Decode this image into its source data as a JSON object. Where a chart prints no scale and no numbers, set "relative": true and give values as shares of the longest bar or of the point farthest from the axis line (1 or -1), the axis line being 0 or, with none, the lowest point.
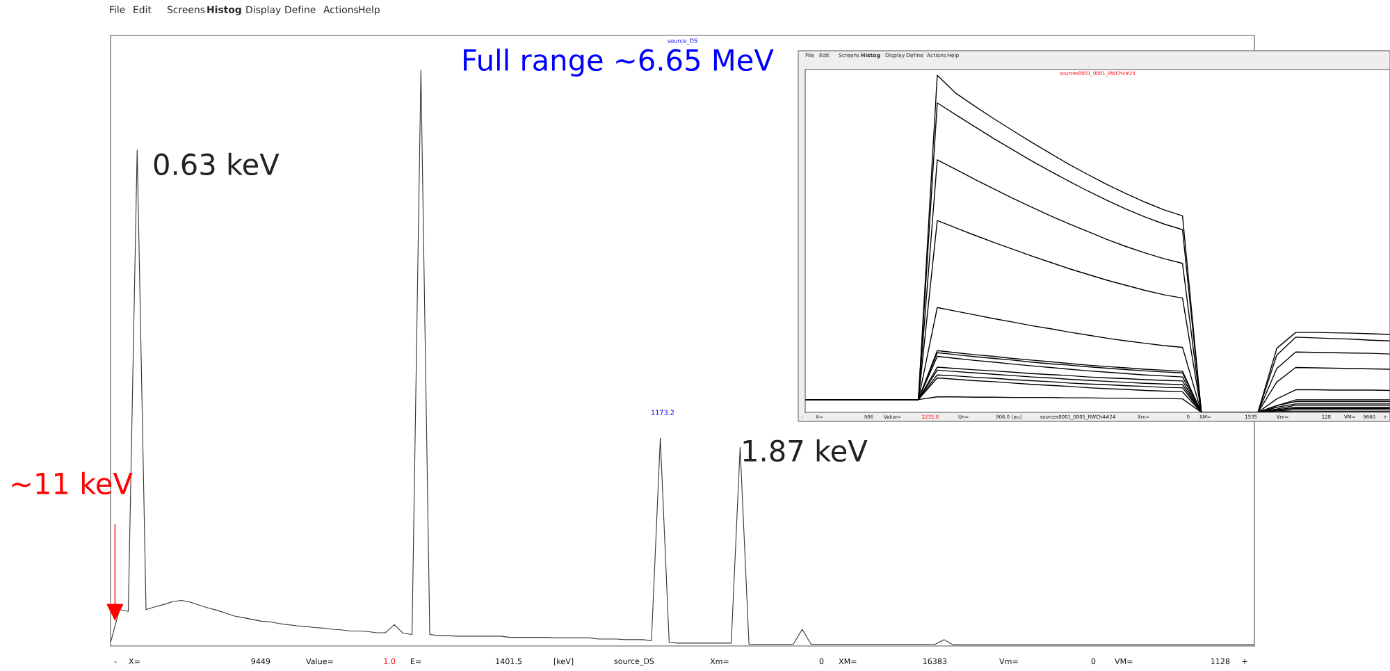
{
  "chart_data": [
    {
      "type": "line",
      "title": "source_DS",
      "relative": true,
      "categories": [
        null,
        null,
        null,
        null,
        null,
        null,
        null,
        null,
        null,
        null,
        null,
        null,
        null,
        null,
        null,
        null,
        null,
        null,
        null,
        null,
        null,
        null,
        null,
        null,
        null,
        null,
        null,
        null,
        null,
        null,
        null,
        null,
        null,
        null,
        null,
        null,
        null,
        null,
        null,
        null,
        null,
        null,
        null,
        null,
        null,
        null,
        null,
        null,
        null,
        null,
        null,
        null,
        null,
        null,
        null,
        null,
        null,
        null,
        null,
        null,
        null,
        null,
        null,
        null,
        null,
        null,
        null,
        null,
        null,
        null,
        null,
        null,
        null,
        null,
        null,
        null,
        null,
        null,
        null,
        null,
        null,
        null,
        null,
        null,
        null,
        null,
        null,
        null,
        null,
        null,
        null,
        null,
        null,
        null,
        null,
        null,
        null,
        null,
        null,
        null,
        null,
        null,
        null,
        null,
        null,
        null,
        null,
        null,
        null,
        null,
        null,
        null,
        null,
        null,
        null,
        null,
        null,
        null,
        null,
        null,
        null,
        null,
        null,
        null,
        null,
        null,
        null,
        null,
        null,
        null
      ],
      "series": [
        {
          "color": "#333333",
          "values": [
            0.006,
            0.063,
            0.06,
            0.861,
            0.063,
            0.068,
            0.072,
            0.077,
            0.079,
            0.076,
            0.071,
            0.066,
            0.062,
            0.057,
            0.052,
            0.049,
            0.046,
            0.043,
            0.042,
            0.039,
            0.037,
            0.035,
            0.034,
            0.032,
            0.031,
            0.029,
            0.028,
            0.026,
            0.026,
            0.025,
            0.023,
            0.023,
            0.037,
            0.022,
            0.02,
            1.0,
            0.02,
            0.018,
            0.018,
            0.017,
            0.017,
            0.017,
            0.017,
            0.017,
            0.017,
            0.015,
            0.015,
            0.015,
            0.015,
            0.015,
            0.014,
            0.014,
            0.014,
            0.014,
            0.014,
            0.012,
            0.012,
            0.012,
            0.011,
            0.011,
            0.011,
            0.009,
            0.361,
            0.006,
            0.005,
            0.005,
            0.005,
            0.005,
            0.005,
            0.005,
            0.005,
            0.345,
            0.003,
            0.003,
            0.003,
            0.003,
            0.003,
            0.003,
            0.029,
            0.003,
            0.003,
            0.003,
            0.003,
            0.003,
            0.003,
            0.003,
            0.003,
            0.003,
            0.003,
            0.003,
            0.003,
            0.003,
            0.003,
            0.003,
            0.011,
            0.002,
            0.002,
            0.002,
            0.002,
            0.002,
            0.002,
            0.002,
            0.002,
            0.002,
            0.002,
            0.002,
            0.002,
            0.002,
            0.002,
            0.002,
            0.002,
            0.002,
            0.002,
            0.002,
            0.002,
            0.002,
            0.002,
            0.002,
            0.002,
            0.002,
            0.002,
            0.002,
            0.002,
            0.002,
            0.002,
            0.002,
            0.002,
            0.002,
            0.002,
            0.002
          ]
        }
      ],
      "annotations": [
        "0.63 keV",
        "Full range ~6.65 MeV",
        "1173.2",
        "1.87 keV",
        "~11 keV",
        "File",
        "Edit",
        "Screens",
        "Histog",
        "Display",
        "Define",
        "Actions",
        "Help",
        "-",
        "X=",
        "9449",
        "Value=",
        "1.0",
        "E=",
        "1401.5",
        "[keV]",
        "source_DS",
        "Xm=",
        "0",
        "XM=",
        "16383",
        "Vm=",
        "0",
        "VM=",
        "1128",
        "+"
      ]
    },
    {
      "type": "line",
      "title": "sources0001_0001_RWCh4#24",
      "relative": true,
      "categories": [
        null,
        null,
        null,
        null,
        null,
        null,
        null,
        null,
        null,
        null,
        null,
        null,
        null,
        null,
        null,
        null,
        null,
        null,
        null,
        null,
        null,
        null,
        null,
        null,
        null,
        null,
        null,
        null,
        null,
        null,
        null,
        null
      ],
      "series": [
        {
          "color": "#000000",
          "values": [
            0.038,
            0.038,
            0.038,
            0.038,
            0.038,
            0.038,
            0.038,
            1.0,
            0.946,
            0.908,
            0.871,
            0.836,
            0.801,
            0.768,
            0.735,
            0.705,
            0.676,
            0.649,
            0.624,
            0.601,
            0.583,
            0,
            0,
            0,
            0,
            0.19,
            0.237,
            0.237,
            0.236,
            0.235,
            0.233,
            0.231
          ]
        },
        {
          "color": "#000000",
          "values": [
            0.038,
            0.038,
            0.038,
            0.038,
            0.038,
            0.038,
            0.038,
            0.918,
            0.882,
            0.847,
            0.812,
            0.779,
            0.746,
            0.715,
            0.685,
            0.656,
            0.629,
            0.603,
            0.58,
            0.559,
            0.542,
            0,
            0,
            0,
            0,
            0.17,
            0.223,
            0.221,
            0.219,
            0.217,
            0.214,
            0.212
          ]
        },
        {
          "color": "#000000",
          "values": [
            0.038,
            0.038,
            0.038,
            0.038,
            0.038,
            0.038,
            0.038,
            0.749,
            0.72,
            0.691,
            0.663,
            0.635,
            0.609,
            0.583,
            0.559,
            0.536,
            0.513,
            0.492,
            0.473,
            0.456,
            0.442,
            0,
            0,
            0,
            0,
            0.13,
            0.179,
            0.178,
            0.177,
            0.176,
            0.175,
            0.173
          ]
        },
        {
          "color": "#000000",
          "values": [
            0.038,
            0.038,
            0.038,
            0.038,
            0.038,
            0.038,
            0.038,
            0.569,
            0.547,
            0.525,
            0.504,
            0.484,
            0.464,
            0.445,
            0.426,
            0.409,
            0.392,
            0.377,
            0.362,
            0.349,
            0.339,
            0,
            0,
            0,
            0,
            0.09,
            0.133,
            0.132,
            0.131,
            0.13,
            0.129,
            0.128
          ]
        },
        {
          "color": "#000000",
          "values": [
            0.038,
            0.038,
            0.038,
            0.038,
            0.038,
            0.038,
            0.038,
            0.311,
            0.3,
            0.289,
            0.278,
            0.268,
            0.257,
            0.248,
            0.238,
            0.229,
            0.22,
            0.212,
            0.205,
            0.198,
            0.193,
            0,
            0,
            0,
            0,
            0.04,
            0.067,
            0.067,
            0.066,
            0.066,
            0.066,
            0.065
          ]
        },
        {
          "color": "#000000",
          "values": [
            0.038,
            0.038,
            0.038,
            0.038,
            0.038,
            0.038,
            0.038,
            0.183,
            0.177,
            0.171,
            0.166,
            0.16,
            0.155,
            0.15,
            0.145,
            0.14,
            0.136,
            0.132,
            0.128,
            0.125,
            0.122,
            0,
            0,
            0,
            0,
            0.02,
            0.037,
            0.037,
            0.037,
            0.037,
            0.037,
            0.037
          ]
        },
        {
          "color": "#000000",
          "values": [
            0.038,
            0.038,
            0.038,
            0.038,
            0.038,
            0.038,
            0.038,
            0.177,
            0.171,
            0.165,
            0.16,
            0.155,
            0.149,
            0.144,
            0.14,
            0.135,
            0.131,
            0.127,
            0.123,
            0.12,
            0.117,
            0,
            0,
            0,
            0,
            0.02,
            0.032,
            0.032,
            0.032,
            0.032,
            0.032,
            0.032
          ]
        },
        {
          "color": "#000000",
          "values": [
            0.038,
            0.038,
            0.038,
            0.038,
            0.038,
            0.038,
            0.038,
            0.166,
            0.16,
            0.154,
            0.149,
            0.143,
            0.138,
            0.133,
            0.128,
            0.123,
            0.119,
            0.115,
            0.111,
            0.108,
            0.105,
            0,
            0,
            0,
            0,
            0.015,
            0.025,
            0.025,
            0.025,
            0.025,
            0.025,
            0.025
          ]
        },
        {
          "color": "#000000",
          "values": [
            0.038,
            0.038,
            0.038,
            0.038,
            0.038,
            0.038,
            0.038,
            0.134,
            0.13,
            0.126,
            0.123,
            0.119,
            0.115,
            0.112,
            0.109,
            0.105,
            0.102,
            0.1,
            0.097,
            0.095,
            0.093,
            0,
            0,
            0,
            0,
            0.01,
            0.021,
            0.021,
            0.021,
            0.021,
            0.021,
            0.021
          ]
        },
        {
          "color": "#000000",
          "values": [
            0.038,
            0.038,
            0.038,
            0.038,
            0.038,
            0.038,
            0.038,
            0.125,
            0.121,
            0.117,
            0.113,
            0.109,
            0.105,
            0.102,
            0.098,
            0.095,
            0.092,
            0.089,
            0.086,
            0.084,
            0.082,
            0,
            0,
            0,
            0,
            0.008,
            0.015,
            0.015,
            0.015,
            0.015,
            0.015,
            0.015
          ]
        },
        {
          "color": "#000000",
          "values": [
            0.038,
            0.038,
            0.038,
            0.038,
            0.038,
            0.038,
            0.038,
            0.111,
            0.108,
            0.104,
            0.101,
            0.097,
            0.094,
            0.091,
            0.087,
            0.084,
            0.082,
            0.079,
            0.077,
            0.074,
            0.073,
            0,
            0,
            0,
            0,
            0.006,
            0.012,
            0.012,
            0.012,
            0.012,
            0.012,
            0.012
          ]
        },
        {
          "color": "#000000",
          "values": [
            0.038,
            0.038,
            0.038,
            0.038,
            0.038,
            0.038,
            0.038,
            0.102,
            0.098,
            0.094,
            0.091,
            0.087,
            0.083,
            0.08,
            0.077,
            0.073,
            0.07,
            0.068,
            0.065,
            0.063,
            0.061,
            0,
            0,
            0,
            0,
            0.004,
            0.008,
            0.008,
            0.008,
            0.008,
            0.008,
            0.008
          ]
        },
        {
          "color": "#000000",
          "values": [
            0.038,
            0.038,
            0.038,
            0.038,
            0.038,
            0.038,
            0.038,
            0.046,
            0.046,
            0.045,
            0.045,
            0.044,
            0.044,
            0.044,
            0.043,
            0.043,
            0.042,
            0.042,
            0.041,
            0.041,
            0.04,
            0,
            0,
            0,
            0,
            0.002,
            0.003,
            0.003,
            0.003,
            0.003,
            0.003,
            0.003
          ]
        }
      ],
      "annotations": [
        "File",
        "Edit",
        "Screens",
        "Histog",
        "Display",
        "Define",
        "Actions",
        "Help",
        "-",
        "X=",
        "906",
        "Value=",
        "2232.0",
        "Un=",
        "906.0",
        "[au]",
        "sources0001_0001_RWCh4#24",
        "Xm=",
        "0",
        "XM=",
        "1535",
        "Vm=",
        "128",
        "VM=",
        "9660",
        "+"
      ]
    }
  ]
}
